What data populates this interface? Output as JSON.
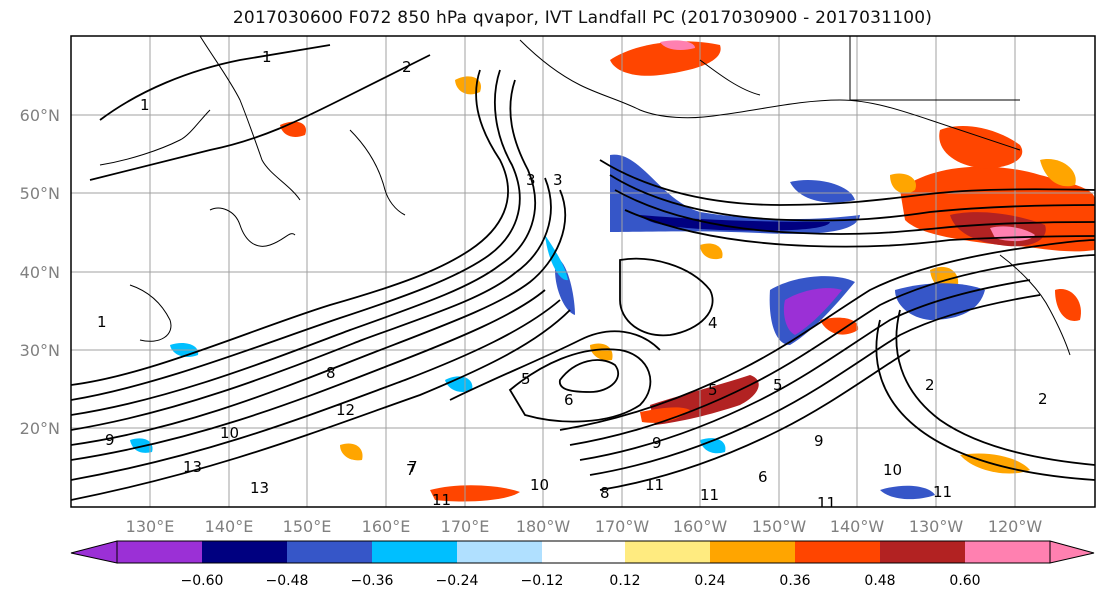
{
  "title": "2017030600 F072 850 hPa qvapor, IVT Landfall PC (2017030900 - 2017031100)",
  "map": {
    "lat_labels": [
      "60°N",
      "50°N",
      "40°N",
      "30°N",
      "20°N"
    ],
    "lon_labels": [
      "130°E",
      "140°E",
      "150°E",
      "160°E",
      "170°E",
      "180°W",
      "170°W",
      "160°W",
      "150°W",
      "140°W",
      "130°W",
      "120°W"
    ],
    "contour_labels": [
      "1",
      "2",
      "1",
      "1",
      "3",
      "3",
      "4",
      "5",
      "6",
      "7",
      "8",
      "9",
      "9",
      "10",
      "10",
      "11",
      "11",
      "11",
      "12",
      "13",
      "13",
      "9",
      "7",
      "5",
      "2",
      "6",
      "5",
      "11",
      "10",
      "11",
      "8",
      "2"
    ]
  },
  "colorbar": {
    "ticks": [
      "−0.60",
      "−0.48",
      "−0.36",
      "−0.24",
      "−0.12",
      "0.12",
      "0.24",
      "0.36",
      "0.48",
      "0.60"
    ],
    "colors": [
      "#9b30d6",
      "#000080",
      "#3656c8",
      "#00bfff",
      "#b0e0ff",
      "#ffffff",
      "#ffeb80",
      "#ffa500",
      "#ff4500",
      "#b22222",
      "#ff80b0"
    ],
    "under_color": "#9b30d6",
    "over_color": "#ff80b0"
  }
}
